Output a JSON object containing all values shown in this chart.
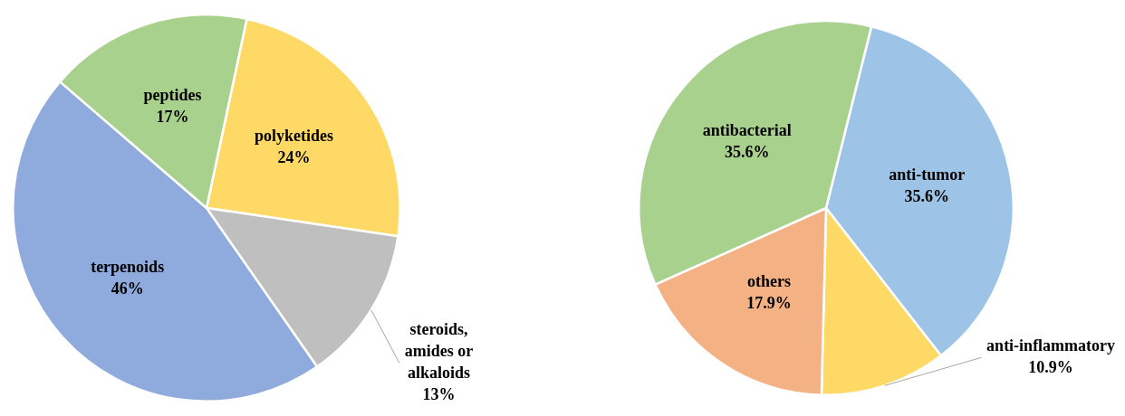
{
  "chart_data": [
    {
      "type": "pie",
      "categories": [
        "polyketides",
        "steroids, amides or alkaloids",
        "terpenoids",
        "peptides"
      ],
      "values": [
        24,
        13,
        46,
        17
      ],
      "colors": [
        "#ffd966",
        "#bfbfbf",
        "#8faadc",
        "#a9d18e"
      ],
      "value_labels": [
        "24%",
        "13%",
        "46%",
        "17%"
      ],
      "legend": false
    },
    {
      "type": "pie",
      "categories": [
        "anti-tumor",
        "anti-inflammatory",
        "others",
        "antibacterial"
      ],
      "values": [
        35.6,
        10.9,
        17.9,
        35.6
      ],
      "colors": [
        "#9dc3e6",
        "#ffd966",
        "#f4b183",
        "#a9d18e"
      ],
      "value_labels": [
        "35.6%",
        "10.9%",
        "17.9%",
        "35.6%"
      ],
      "legend": false
    }
  ]
}
